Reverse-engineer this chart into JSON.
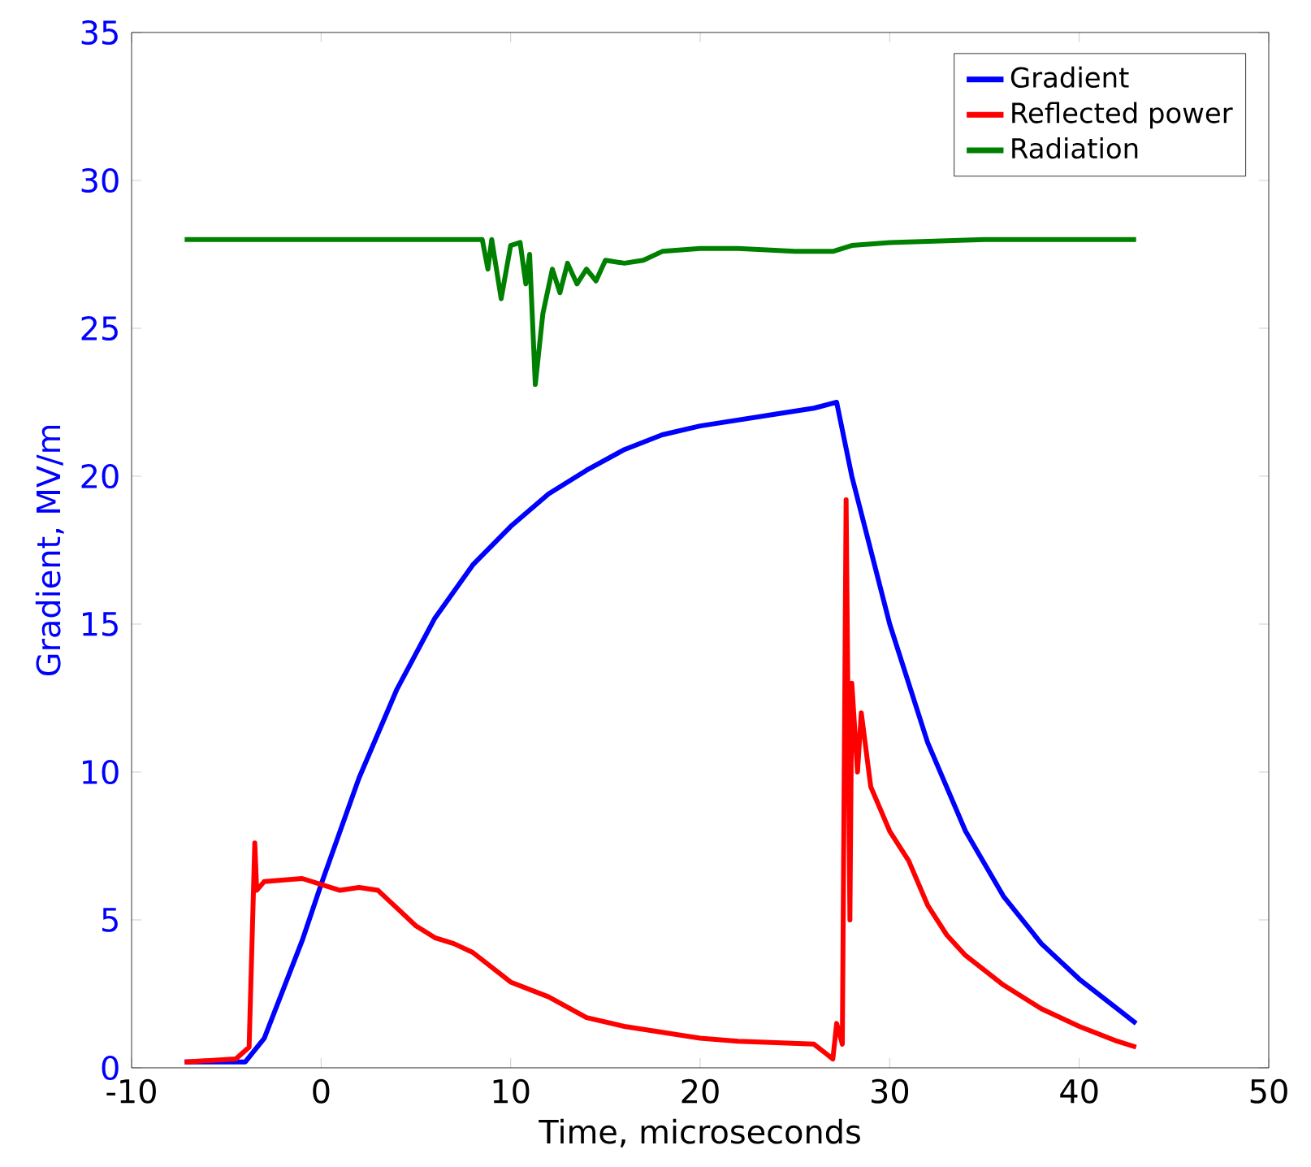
{
  "chart_data": {
    "type": "line",
    "xlabel": "Time, microseconds",
    "ylabel": "Gradient, MV/m",
    "xlim": [
      -10,
      50
    ],
    "xticks": [
      -10,
      0,
      10,
      20,
      30,
      40,
      50
    ],
    "ylim": [
      0,
      35
    ],
    "yticks": [
      0,
      5,
      10,
      15,
      20,
      25,
      30,
      35
    ],
    "legend": "top right",
    "grid": false,
    "marker": "none",
    "line_style": "solid",
    "series": [
      {
        "name": "Gradient",
        "color": "#0000ff",
        "x": [
          -7.2,
          -4,
          -3,
          -1,
          0,
          2,
          4,
          6,
          8,
          10,
          12,
          14,
          16,
          18,
          20,
          22,
          24,
          26,
          27.2,
          28,
          29,
          30,
          32,
          34,
          36,
          38,
          40,
          42,
          43
        ],
        "values": [
          0.2,
          0.2,
          1.0,
          4.3,
          6.2,
          9.8,
          12.8,
          15.2,
          17.0,
          18.3,
          19.4,
          20.2,
          20.9,
          21.4,
          21.7,
          21.9,
          22.1,
          22.3,
          22.5,
          20.0,
          17.5,
          15.0,
          11.0,
          8.0,
          5.8,
          4.2,
          3.0,
          2.0,
          1.5
        ]
      },
      {
        "name": "Reflected power",
        "color": "#ff0000",
        "x": [
          -7.2,
          -4.5,
          -3.8,
          -3.5,
          -3.4,
          -3.0,
          -1,
          0,
          1,
          2,
          3,
          4,
          5,
          6,
          7,
          8,
          9,
          10,
          12,
          14,
          16,
          18,
          20,
          22,
          24,
          26,
          27.0,
          27.2,
          27.5,
          27.7,
          27.9,
          28.0,
          28.3,
          28.5,
          29,
          30,
          31,
          32,
          33,
          34,
          36,
          38,
          40,
          42,
          43
        ],
        "values": [
          0.2,
          0.3,
          0.7,
          7.6,
          6.0,
          6.3,
          6.4,
          6.2,
          6.0,
          6.1,
          6.0,
          5.4,
          4.8,
          4.4,
          4.2,
          3.9,
          3.4,
          2.9,
          2.4,
          1.7,
          1.4,
          1.2,
          1.0,
          0.9,
          0.85,
          0.8,
          0.3,
          1.5,
          0.8,
          19.2,
          5.0,
          13.0,
          10.0,
          12.0,
          9.5,
          8.0,
          7.0,
          5.5,
          4.5,
          3.8,
          2.8,
          2.0,
          1.4,
          0.9,
          0.7
        ]
      },
      {
        "name": "Radiation",
        "color": "#008000",
        "x": [
          -7.2,
          8.5,
          8.8,
          9.0,
          9.5,
          10,
          10.5,
          10.8,
          11.0,
          11.3,
          11.7,
          12.2,
          12.6,
          13.0,
          13.5,
          14.0,
          14.5,
          15,
          16,
          17,
          18,
          20,
          22,
          25,
          27,
          28,
          30,
          35,
          43
        ],
        "values": [
          28,
          28,
          27.0,
          28.0,
          26.0,
          27.8,
          27.9,
          26.5,
          27.5,
          23.1,
          25.5,
          27.0,
          26.2,
          27.2,
          26.5,
          27.0,
          26.6,
          27.3,
          27.2,
          27.3,
          27.6,
          27.7,
          27.7,
          27.6,
          27.6,
          27.8,
          27.9,
          28.0,
          28.0
        ]
      }
    ]
  }
}
